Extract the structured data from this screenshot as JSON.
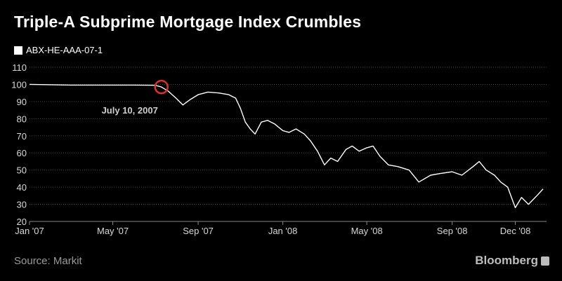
{
  "page": {
    "source": "Source: Markit",
    "brand": "Bloomberg"
  },
  "chart_data": {
    "type": "line",
    "title": "Triple-A Subprime Mortgage Index Crumbles",
    "legend": "ABX-HE-AAA-07-1",
    "x_ticks": [
      "Jan '07",
      "May '07",
      "Sep '07",
      "Jan '08",
      "May '08",
      "Sep '08",
      "Dec '08"
    ],
    "y_ticks": [
      20,
      30,
      40,
      50,
      60,
      70,
      80,
      90,
      100,
      110
    ],
    "ylim": [
      20,
      110
    ],
    "xlim": [
      "2007-01-01",
      "2009-01-15"
    ],
    "grid": true,
    "annotation": {
      "text": "July 10, 2007",
      "date": "2007-07-10",
      "value": 98.5
    },
    "series": [
      {
        "name": "ABX-HE-AAA-07-1",
        "x": [
          "2007-01-01",
          "2007-02-01",
          "2007-03-01",
          "2007-04-01",
          "2007-05-01",
          "2007-06-01",
          "2007-07-01",
          "2007-07-10",
          "2007-07-20",
          "2007-07-31",
          "2007-08-10",
          "2007-08-20",
          "2007-09-01",
          "2007-09-15",
          "2007-10-01",
          "2007-10-15",
          "2007-10-25",
          "2007-11-01",
          "2007-11-08",
          "2007-11-15",
          "2007-11-22",
          "2007-12-01",
          "2007-12-10",
          "2007-12-20",
          "2008-01-01",
          "2008-01-10",
          "2008-01-20",
          "2008-02-01",
          "2008-02-10",
          "2008-02-20",
          "2008-03-01",
          "2008-03-10",
          "2008-03-20",
          "2008-04-01",
          "2008-04-10",
          "2008-04-20",
          "2008-05-01",
          "2008-05-10",
          "2008-05-20",
          "2008-06-01",
          "2008-06-15",
          "2008-07-01",
          "2008-07-15",
          "2008-08-01",
          "2008-08-15",
          "2008-09-01",
          "2008-09-15",
          "2008-10-01",
          "2008-10-10",
          "2008-10-20",
          "2008-11-01",
          "2008-11-10",
          "2008-11-20",
          "2008-12-01",
          "2008-12-10",
          "2008-12-20",
          "2009-01-01",
          "2009-01-10"
        ],
        "values": [
          100,
          99.8,
          99.6,
          99.6,
          99.6,
          99.6,
          99.5,
          98.5,
          96,
          92,
          88,
          91,
          94,
          95.5,
          95,
          94,
          92,
          86,
          78,
          74,
          71,
          78,
          79,
          77,
          73,
          72,
          74,
          71,
          67,
          61,
          53,
          57,
          55,
          62,
          64,
          61,
          63,
          64,
          58,
          53,
          52,
          50,
          43,
          47,
          48,
          49,
          47,
          52,
          55,
          50,
          47,
          43,
          40,
          28,
          34,
          30,
          35,
          39
        ]
      }
    ]
  }
}
